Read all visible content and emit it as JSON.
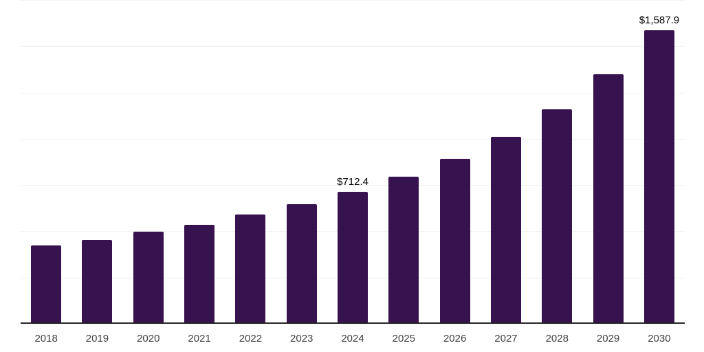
{
  "chart_data": {
    "type": "bar",
    "categories": [
      "2018",
      "2019",
      "2020",
      "2021",
      "2022",
      "2023",
      "2024",
      "2025",
      "2026",
      "2027",
      "2028",
      "2029",
      "2030"
    ],
    "values": [
      422,
      454.5,
      497,
      536,
      591,
      645.5,
      712.4,
      796,
      891,
      1011,
      1159,
      1348,
      1587.9
    ],
    "value_labels": [
      "",
      "",
      "",
      "",
      "",
      "",
      "$712.4",
      "",
      "",
      "",
      "",
      "",
      "$1,587.9"
    ],
    "title": "",
    "xlabel": "",
    "ylabel": "",
    "ylim": [
      0,
      1750
    ],
    "gridline_step": 250,
    "grid": true,
    "legend": "none",
    "colors": {
      "bar": "#36124f",
      "gridline": "#f1f1f2",
      "axis_line": "#262626",
      "tick_label": "#404040",
      "data_label": "#000000",
      "background": "#ffffff"
    }
  }
}
